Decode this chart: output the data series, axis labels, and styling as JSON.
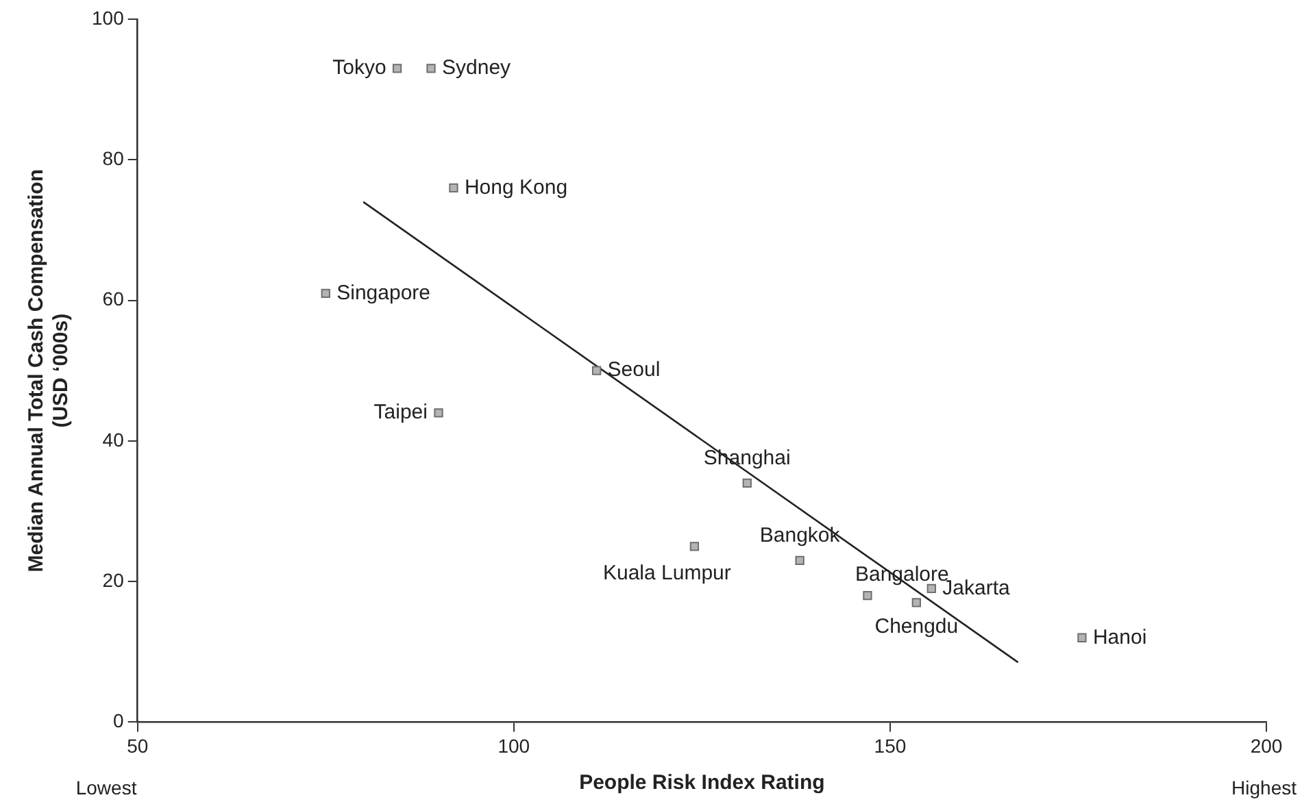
{
  "chart_data": {
    "type": "scatter",
    "xlabel": "People Risk Index Rating",
    "ylabel": "Median Annual Total Cash Compensation\n(USD ‘000s)",
    "xlim": [
      50,
      200
    ],
    "xticks": [
      50,
      100,
      150,
      200
    ],
    "ylim": [
      0,
      100
    ],
    "yticks": [
      0,
      20,
      40,
      60,
      80,
      100
    ],
    "grid": false,
    "marker": "square",
    "annotations": [
      "Lowest",
      "Highest"
    ],
    "series": [
      {
        "name": "Tokyo",
        "color": "#b4b4b4",
        "x": [
          84.5
        ],
        "values": [
          93
        ]
      },
      {
        "name": "Sydney",
        "color": "#b4b4b4",
        "x": [
          89
        ],
        "values": [
          93
        ]
      },
      {
        "name": "Hong Kong",
        "color": "#b4b4b4",
        "x": [
          92
        ],
        "values": [
          76
        ]
      },
      {
        "name": "Singapore",
        "color": "#b4b4b4",
        "x": [
          75
        ],
        "values": [
          61
        ]
      },
      {
        "name": "Seoul",
        "color": "#b4b4b4",
        "x": [
          111
        ],
        "values": [
          50
        ]
      },
      {
        "name": "Taipei",
        "color": "#b4b4b4",
        "x": [
          90
        ],
        "values": [
          44
        ]
      },
      {
        "name": "Shanghai",
        "color": "#b4b4b4",
        "x": [
          131
        ],
        "values": [
          34
        ]
      },
      {
        "name": "Kuala Lumpur",
        "color": "#b4b4b4",
        "x": [
          124
        ],
        "values": [
          25
        ]
      },
      {
        "name": "Bangkok",
        "color": "#b4b4b4",
        "x": [
          138
        ],
        "values": [
          23
        ]
      },
      {
        "name": "Bangalore",
        "color": "#b4b4b4",
        "x": [
          147
        ],
        "values": [
          18
        ]
      },
      {
        "name": "Jakarta",
        "color": "#b4b4b4",
        "x": [
          155.5
        ],
        "values": [
          19
        ]
      },
      {
        "name": "Chengdu",
        "color": "#b4b4b4",
        "x": [
          153.5
        ],
        "values": [
          17
        ]
      },
      {
        "name": "Hanoi",
        "color": "#b4b4b4",
        "x": [
          175.5
        ],
        "values": [
          12
        ]
      },
      {
        "type": "line",
        "color": "#222222",
        "marker": "none",
        "line_style": "solid",
        "x": [
          80,
          167
        ],
        "values": [
          74,
          8.5
        ]
      }
    ]
  }
}
